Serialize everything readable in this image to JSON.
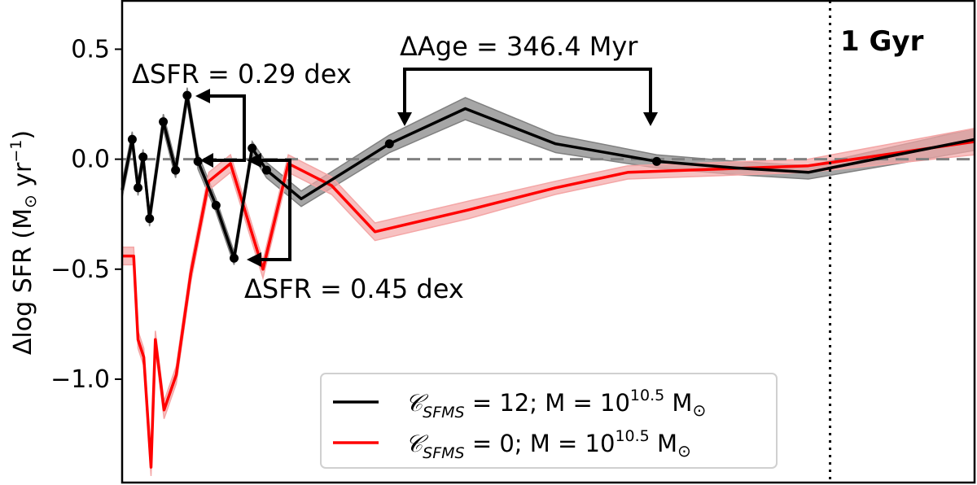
{
  "chart_data": {
    "type": "line",
    "xlabel": "",
    "ylabel": {
      "prefix": "Δlog SFR (M",
      "sun": "⊙",
      "mid": " yr",
      "exp": "−1",
      "suffix": ")"
    },
    "ylim": [
      -1.47,
      0.72
    ],
    "xlim": [
      0,
      1.18
    ],
    "ytick_values": [
      0.5,
      0.0,
      -0.5,
      -1.0
    ],
    "ytick_labels": [
      "0.5",
      "0.0",
      "−0.5",
      "−1.0"
    ],
    "zero_line": 0.0,
    "series": [
      {
        "name": "black",
        "color": "#000000",
        "band_color": "#808080",
        "x": [
          0.0,
          0.014,
          0.022,
          0.029,
          0.038,
          0.057,
          0.074,
          0.09,
          0.105,
          0.13,
          0.155,
          0.18,
          0.2,
          0.248,
          0.37,
          0.475,
          0.6,
          0.74,
          0.85,
          0.95,
          1.18
        ],
        "y": [
          -0.14,
          0.09,
          -0.13,
          0.01,
          -0.27,
          0.17,
          -0.05,
          0.29,
          -0.01,
          -0.21,
          -0.45,
          0.05,
          -0.05,
          -0.18,
          0.07,
          0.23,
          0.07,
          -0.01,
          -0.04,
          -0.06,
          0.09
        ],
        "err": [
          0.035,
          0.035,
          0.035,
          0.035,
          0.035,
          0.035,
          0.035,
          0.035,
          0.035,
          0.03,
          0.03,
          0.03,
          0.035,
          0.035,
          0.04,
          0.05,
          0.04,
          0.03,
          0.03,
          0.03,
          0.05
        ]
      },
      {
        "name": "red",
        "color": "#ff0000",
        "band_color": "#f4a6a6",
        "x": [
          0.0,
          0.016,
          0.022,
          0.03,
          0.04,
          0.046,
          0.058,
          0.075,
          0.095,
          0.12,
          0.15,
          0.195,
          0.23,
          0.29,
          0.35,
          0.48,
          0.6,
          0.7,
          0.95,
          1.18
        ],
        "y": [
          -0.44,
          -0.44,
          -0.82,
          -0.9,
          -1.4,
          -0.82,
          -1.14,
          -0.98,
          -0.52,
          -0.1,
          -0.02,
          -0.5,
          -0.02,
          -0.12,
          -0.33,
          -0.23,
          -0.13,
          -0.06,
          -0.03,
          0.08
        ],
        "err": [
          0.04,
          0.04,
          0.04,
          0.04,
          0.04,
          0.04,
          0.04,
          0.04,
          0.04,
          0.04,
          0.04,
          0.04,
          0.04,
          0.04,
          0.04,
          0.04,
          0.03,
          0.03,
          0.03,
          0.06
        ]
      }
    ],
    "markers": {
      "x": [
        0.014,
        0.022,
        0.029,
        0.038,
        0.057,
        0.074,
        0.09,
        0.105,
        0.13,
        0.155,
        0.18,
        0.2,
        0.37,
        0.74
      ],
      "y": [
        0.09,
        -0.13,
        0.01,
        -0.27,
        0.17,
        -0.05,
        0.29,
        -0.01,
        -0.21,
        -0.45,
        0.05,
        -0.05,
        0.07,
        -0.01
      ]
    },
    "vline": {
      "x": 0.98,
      "label": "1 Gyr"
    },
    "annotations": {
      "sfr_top": "ΔSFR = 0.29 dex",
      "sfr_bottom": "ΔSFR = 0.45 dex",
      "age": "ΔAge = 346.4 Myr"
    },
    "legend": {
      "position": "bottom-center",
      "items": [
        {
          "color": "#000000",
          "c_symbol": "𝒞",
          "c_sub": "SFMS",
          "c_val": " = 12; M = 10",
          "exp": "10.5",
          "unit": " M",
          "sun": "⊙"
        },
        {
          "color": "#ff0000",
          "c_symbol": "𝒞",
          "c_sub": "SFMS",
          "c_val": " = 0; M = 10",
          "exp": "10.5",
          "unit": " M",
          "sun": "⊙"
        }
      ]
    }
  }
}
